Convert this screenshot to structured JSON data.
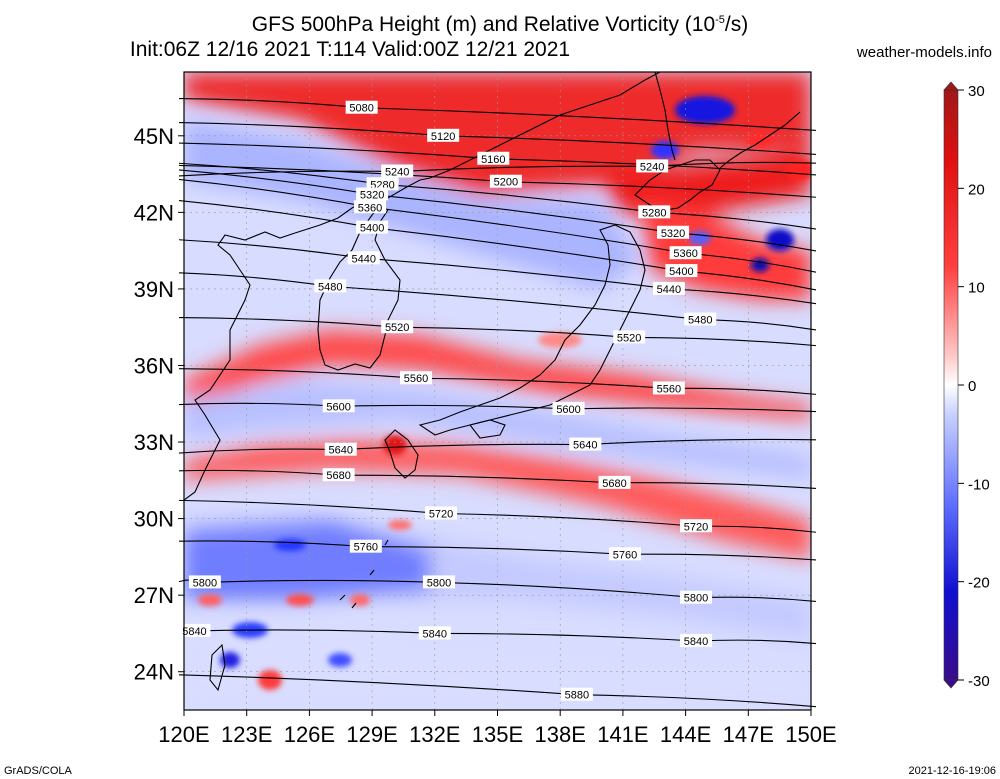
{
  "title_line1": "GFS 500hPa Height (m) and Relative Vorticity (10",
  "title_exp": "-5",
  "title_unit_tail": "/s)",
  "title_line2": "Init:06Z 12/16 2021 T:114 Valid:00Z 12/21 2021",
  "site": "weather-models.info",
  "footer_left": "GrADS/COLA",
  "footer_right": "2021-12-16-19:06",
  "map": {
    "lon_ticks": [
      "120E",
      "123E",
      "126E",
      "129E",
      "132E",
      "135E",
      "138E",
      "141E",
      "144E",
      "147E",
      "150E"
    ],
    "lat_ticks": [
      "24N",
      "27N",
      "30N",
      "33N",
      "36N",
      "39N",
      "42N",
      "45N"
    ],
    "lon_range": [
      120,
      150
    ],
    "lat_range": [
      22.5,
      47.5
    ],
    "contour_labels": [
      {
        "text": "5080",
        "lon": 128.5,
        "lat": 46.1
      },
      {
        "text": "5120",
        "lon": 132.4,
        "lat": 45.0
      },
      {
        "text": "5160",
        "lon": 134.8,
        "lat": 44.1
      },
      {
        "text": "5200",
        "lon": 135.4,
        "lat": 43.2
      },
      {
        "text": "5240",
        "lon": 130.2,
        "lat": 43.6
      },
      {
        "text": "5280",
        "lon": 129.5,
        "lat": 43.1
      },
      {
        "text": "5320",
        "lon": 129.0,
        "lat": 42.7
      },
      {
        "text": "5360",
        "lon": 128.9,
        "lat": 42.2
      },
      {
        "text": "5400",
        "lon": 129.0,
        "lat": 41.4
      },
      {
        "text": "5440",
        "lon": 128.6,
        "lat": 40.2
      },
      {
        "text": "5480",
        "lon": 127.0,
        "lat": 39.1
      },
      {
        "text": "5240",
        "lon": 142.4,
        "lat": 43.8
      },
      {
        "text": "5280",
        "lon": 142.5,
        "lat": 42.0
      },
      {
        "text": "5320",
        "lon": 143.4,
        "lat": 41.2
      },
      {
        "text": "5360",
        "lon": 144.0,
        "lat": 40.4
      },
      {
        "text": "5400",
        "lon": 143.8,
        "lat": 39.7
      },
      {
        "text": "5440",
        "lon": 143.2,
        "lat": 39.0
      },
      {
        "text": "5480",
        "lon": 144.7,
        "lat": 37.8
      },
      {
        "text": "5520",
        "lon": 130.2,
        "lat": 37.5
      },
      {
        "text": "5520",
        "lon": 141.3,
        "lat": 37.1
      },
      {
        "text": "5560",
        "lon": 131.1,
        "lat": 35.5
      },
      {
        "text": "5560",
        "lon": 143.2,
        "lat": 35.1
      },
      {
        "text": "5600",
        "lon": 127.4,
        "lat": 34.4
      },
      {
        "text": "5600",
        "lon": 138.4,
        "lat": 34.3
      },
      {
        "text": "5640",
        "lon": 127.5,
        "lat": 32.7
      },
      {
        "text": "5640",
        "lon": 139.2,
        "lat": 32.9
      },
      {
        "text": "5680",
        "lon": 127.4,
        "lat": 31.7
      },
      {
        "text": "5680",
        "lon": 140.6,
        "lat": 31.4
      },
      {
        "text": "5720",
        "lon": 132.3,
        "lat": 30.2
      },
      {
        "text": "5720",
        "lon": 144.5,
        "lat": 29.7
      },
      {
        "text": "5760",
        "lon": 128.7,
        "lat": 28.9
      },
      {
        "text": "5760",
        "lon": 141.1,
        "lat": 28.6
      },
      {
        "text": "5800",
        "lon": 121.0,
        "lat": 27.5
      },
      {
        "text": "5800",
        "lon": 132.2,
        "lat": 27.5
      },
      {
        "text": "5800",
        "lon": 144.5,
        "lat": 26.9
      },
      {
        "text": "5840",
        "lon": 120.5,
        "lat": 25.6
      },
      {
        "text": "5840",
        "lon": 132.0,
        "lat": 25.5
      },
      {
        "text": "5840",
        "lon": 144.5,
        "lat": 25.2
      },
      {
        "text": "5880",
        "lon": 138.8,
        "lat": 23.1
      }
    ]
  },
  "colorbar": {
    "labels": [
      "30",
      "20",
      "10",
      "0",
      "-10",
      "-20",
      "-30"
    ],
    "min": -30,
    "max": 30
  }
}
